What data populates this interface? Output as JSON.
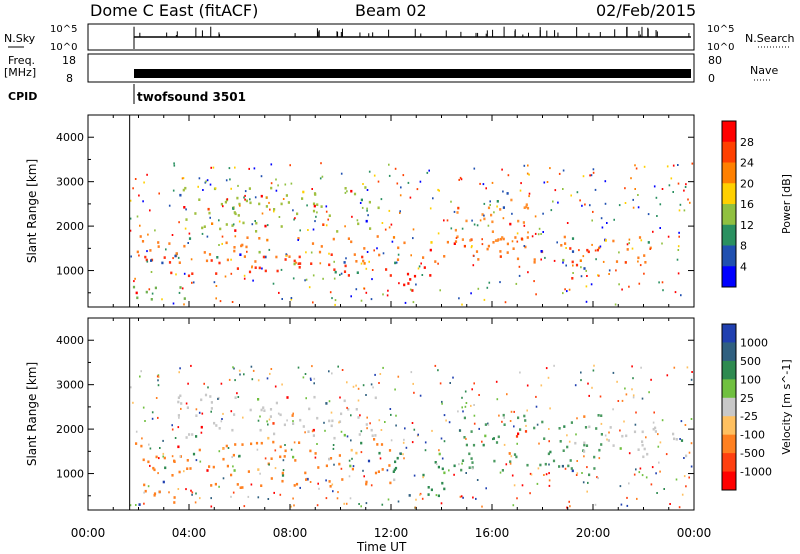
{
  "header": {
    "station": "Dome C East (fitACF)",
    "beam": "Beam 02",
    "date": "02/Feb/2015"
  },
  "top_panels": {
    "nsky_label": "N.Sky",
    "nsky_ticks": [
      "10^5",
      "10^0"
    ],
    "nsearch_label": "N.Search",
    "nsearch_ticks": [
      "10^5",
      "10^0"
    ],
    "freq_label_1": "Freq.",
    "freq_label_2": "[MHz]",
    "freq_ticks": [
      "18",
      "8"
    ],
    "nave_label": "Nave",
    "nave_ticks": [
      "80",
      "0"
    ],
    "cpid_label": "CPID",
    "cpid_value": "twofsound 3501"
  },
  "chart_data": [
    {
      "type": "heatmap",
      "title": "",
      "xlabel": "Time UT",
      "ylabel": "Slant Range [km]",
      "xlim": [
        0,
        24
      ],
      "ylim": [
        180,
        4500
      ],
      "x_ticks": [
        "00:00",
        "04:00",
        "08:00",
        "12:00",
        "16:00",
        "20:00",
        "00:00"
      ],
      "y_ticks": [
        "1000",
        "2000",
        "3000",
        "4000"
      ],
      "colorbar": {
        "label": "Power [dB]",
        "ticks": [
          "28",
          "24",
          "20",
          "16",
          "12",
          "8",
          "4"
        ],
        "colors": [
          "#ff0000",
          "#ff4000",
          "#ff8000",
          "#ffd000",
          "#90c040",
          "#2a9060",
          "#2050b0",
          "#0000ff"
        ]
      },
      "data_start_hour": 1.65,
      "regions": [
        {
          "t": [
            1.8,
            22.9
          ],
          "r": [
            1200,
            1800
          ],
          "color": "#ff8020"
        },
        {
          "t": [
            2.0,
            12.0
          ],
          "r": [
            900,
            1400
          ],
          "color": "#ff3010"
        },
        {
          "t": [
            12.2,
            13.6
          ],
          "r": [
            550,
            1200
          ],
          "color": "#ff1000"
        },
        {
          "t": [
            3.5,
            11.5
          ],
          "r": [
            1900,
            2900
          ],
          "color": "#a0c040"
        },
        {
          "t": [
            14.5,
            17.5
          ],
          "r": [
            1700,
            2800
          ],
          "color": "#ff9030"
        },
        {
          "t": [
            1.7,
            4.0
          ],
          "r": [
            300,
            700
          ],
          "color": "#70b050"
        },
        {
          "t": [
            19.0,
            20.2
          ],
          "r": [
            700,
            1600
          ],
          "color": "#ff3010"
        }
      ]
    },
    {
      "type": "heatmap",
      "title": "",
      "xlabel": "Time UT",
      "ylabel": "Slant Range [km]",
      "xlim": [
        0,
        24
      ],
      "ylim": [
        180,
        4500
      ],
      "x_ticks": [
        "00:00",
        "04:00",
        "08:00",
        "12:00",
        "16:00",
        "20:00",
        "00:00"
      ],
      "y_ticks": [
        "1000",
        "2000",
        "3000",
        "4000"
      ],
      "colorbar": {
        "label": "Velocity [m s^-1]",
        "ticks": [
          "1000",
          "500",
          "100",
          "25",
          "-25",
          "-100",
          "-500",
          "-1000"
        ],
        "colors": [
          "#2040b0",
          "#306080",
          "#2e8a50",
          "#70c040",
          "#c8c8c8",
          "#ffc060",
          "#ff8020",
          "#ff4010",
          "#ff0000"
        ]
      },
      "data_start_hour": 1.65,
      "regions": [
        {
          "t": [
            1.8,
            12.0
          ],
          "r": [
            700,
            1800
          ],
          "color": "#ff8020"
        },
        {
          "t": [
            3.5,
            11.5
          ],
          "r": [
            1800,
            2800
          ],
          "color": "#c8c8c8"
        },
        {
          "t": [
            12.0,
            14.5
          ],
          "r": [
            500,
            1500
          ],
          "color": "#2e8a50"
        },
        {
          "t": [
            14.5,
            20.5
          ],
          "r": [
            1000,
            2400
          ],
          "color": "#4a9a60"
        },
        {
          "t": [
            19.5,
            23.8
          ],
          "r": [
            1400,
            2100
          ],
          "color": "#c8c8c8"
        },
        {
          "t": [
            1.7,
            4.0
          ],
          "r": [
            300,
            700
          ],
          "color": "#ff8020"
        }
      ]
    }
  ]
}
